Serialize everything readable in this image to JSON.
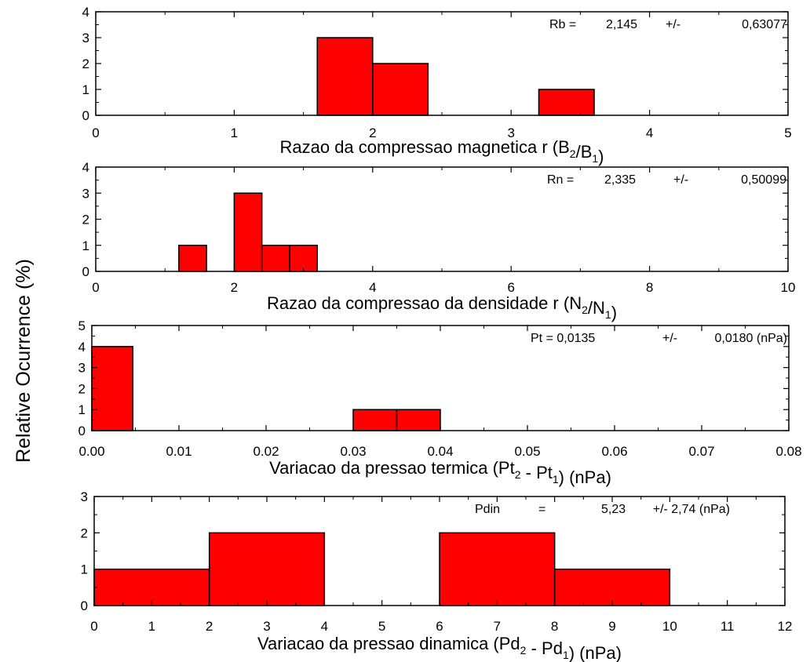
{
  "ylabel": "Relative Ocurrence (%)",
  "colors": {
    "bar_fill": "#ff0000",
    "bar_stroke": "#000000",
    "axis": "#000000",
    "background": "#ffffff"
  },
  "chart_data": [
    {
      "type": "bar",
      "subtype": "histogram",
      "xlabel": "Razao da compressao magnetica r (B2/B1)",
      "xlabel_parts": [
        {
          "text": "Razao da compressao magnetica r (B"
        },
        {
          "text": "2",
          "sub": true
        },
        {
          "text": "/B"
        },
        {
          "text": "1",
          "sub": true
        },
        {
          "text": ")"
        }
      ],
      "xlim": [
        0,
        5
      ],
      "ylim": [
        0,
        4
      ],
      "xticks": [
        "0",
        "1",
        "2",
        "3",
        "4",
        "5"
      ],
      "yticks": [
        "0",
        "1",
        "2",
        "3",
        "4"
      ],
      "bins": [
        {
          "x0": 1.6,
          "x1": 2.0,
          "count": 3
        },
        {
          "x0": 2.0,
          "x1": 2.4,
          "count": 2
        },
        {
          "x0": 3.2,
          "x1": 3.6,
          "count": 1
        }
      ],
      "annotation": {
        "label": "Rb =",
        "value": "2,145",
        "pm": "+/-",
        "error": "0,63077"
      }
    },
    {
      "type": "bar",
      "subtype": "histogram",
      "xlabel": "Razao da compressao da densidade r (N2/N1)",
      "xlabel_parts": [
        {
          "text": "Razao da compressao da densidade r (N"
        },
        {
          "text": "2",
          "sub": true
        },
        {
          "text": "/N"
        },
        {
          "text": "1",
          "sub": true
        },
        {
          "text": ")"
        }
      ],
      "xlim": [
        0,
        10
      ],
      "ylim": [
        0,
        4
      ],
      "xticks": [
        "0",
        "2",
        "4",
        "6",
        "8",
        "10"
      ],
      "yticks": [
        "0",
        "1",
        "2",
        "3",
        "4"
      ],
      "bins": [
        {
          "x0": 1.2,
          "x1": 1.6,
          "count": 1
        },
        {
          "x0": 2.0,
          "x1": 2.4,
          "count": 3
        },
        {
          "x0": 2.4,
          "x1": 2.8,
          "count": 1
        },
        {
          "x0": 2.8,
          "x1": 3.2,
          "count": 1
        }
      ],
      "annotation": {
        "label": "Rn =",
        "value": "2,335",
        "pm": "+/-",
        "error": "0,50099"
      }
    },
    {
      "type": "bar",
      "subtype": "histogram",
      "xlabel": "Variacao da pressao termica (Pt2 - Pt1) (nPa)",
      "xlabel_parts": [
        {
          "text": "Variacao da pressao termica (Pt"
        },
        {
          "text": "2",
          "sub": true
        },
        {
          "text": " - Pt"
        },
        {
          "text": "1",
          "sub": true
        },
        {
          "text": ") (nPa)"
        }
      ],
      "xlim": [
        0,
        0.08
      ],
      "ylim": [
        0,
        5
      ],
      "xticks": [
        "0.00",
        "0.01",
        "0.02",
        "0.03",
        "0.04",
        "0.05",
        "0.06",
        "0.07",
        "0.08"
      ],
      "yticks": [
        "0",
        "1",
        "2",
        "3",
        "4",
        "5"
      ],
      "bins": [
        {
          "x0": 0.0,
          "x1": 0.0047,
          "count": 4
        },
        {
          "x0": 0.03,
          "x1": 0.035,
          "count": 1
        },
        {
          "x0": 0.035,
          "x1": 0.04,
          "count": 1
        }
      ],
      "annotation": {
        "label": "Pt = 0,0135",
        "value": "",
        "pm": "+/-",
        "error": "0,0180 (nPa)"
      }
    },
    {
      "type": "bar",
      "subtype": "histogram",
      "xlabel": "Variacao da pressao dinamica (Pd2 - Pd1) (nPa)",
      "xlabel_parts": [
        {
          "text": "Variacao da pressao dinamica (Pd"
        },
        {
          "text": "2",
          "sub": true
        },
        {
          "text": " - Pd"
        },
        {
          "text": "1",
          "sub": true
        },
        {
          "text": ") (nPa)"
        }
      ],
      "xlim": [
        0,
        12
      ],
      "ylim": [
        0,
        3
      ],
      "xticks": [
        "0",
        "1",
        "2",
        "3",
        "4",
        "5",
        "6",
        "7",
        "8",
        "9",
        "10",
        "11",
        "12"
      ],
      "yticks": [
        "0",
        "1",
        "2",
        "3"
      ],
      "bins": [
        {
          "x0": 0,
          "x1": 2,
          "count": 1
        },
        {
          "x0": 2,
          "x1": 4,
          "count": 2
        },
        {
          "x0": 6,
          "x1": 8,
          "count": 2
        },
        {
          "x0": 8,
          "x1": 10,
          "count": 1
        }
      ],
      "annotation": {
        "label": "Pdin",
        "value": "=",
        "pm": "5,23",
        "error": "+/-     2,74 (nPa)"
      }
    }
  ]
}
